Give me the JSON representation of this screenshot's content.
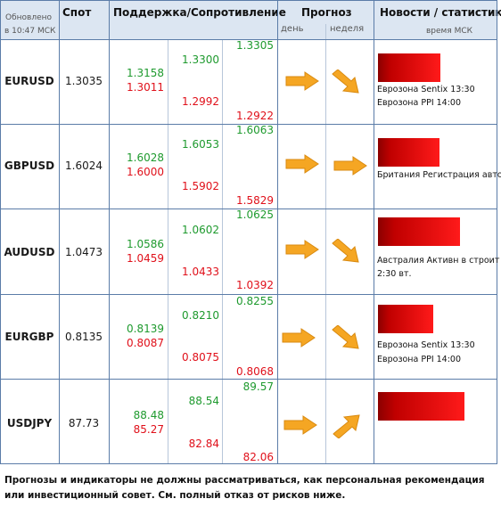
{
  "header": {
    "updated_label": "Обновлено",
    "updated_time": "в 10:47 МСК",
    "spot": "Спот",
    "support_resistance": "Поддержка/Сопротивление",
    "forecast": "Прогноз",
    "forecast_day": "день",
    "forecast_week": "неделя",
    "news": "Новости / статистика",
    "news_time": "время МСК"
  },
  "rows": [
    {
      "pair": "EURUSD",
      "spot": "1.3035",
      "s1": "1.3158",
      "r1": "1.3011",
      "s2": "1.3300",
      "r2": "1.2992",
      "s3": "1.3305",
      "r3": "1.2922",
      "day_arrow": "right-arrow-icon",
      "week_arrow": "down-right-arrow-icon",
      "bar_strength": 0.7,
      "news": [
        "Еврозона Sentix 13:30",
        "Еврозона PPI 14:00"
      ]
    },
    {
      "pair": "GBPUSD",
      "spot": "1.6024",
      "s1": "1.6028",
      "r1": "1.6000",
      "s2": "1.6053",
      "r2": "1.5902",
      "s3": "1.6063",
      "r3": "1.5829",
      "day_arrow": "right-arrow-icon",
      "week_arrow": "right-arrow-icon",
      "bar_strength": 0.68,
      "news": [
        "Британия Регистрация авто"
      ]
    },
    {
      "pair": "AUDUSD",
      "spot": "1.0473",
      "s1": "1.0586",
      "r1": "1.0459",
      "s2": "1.0602",
      "r2": "1.0433",
      "s3": "1.0625",
      "r3": "1.0392",
      "day_arrow": "right-arrow-icon",
      "week_arrow": "down-right-arrow-icon",
      "bar_strength": 0.92,
      "news": [
        "Австралия Активн в строит",
        "2:30 вт."
      ]
    },
    {
      "pair": "EURGBP",
      "spot": "0.8135",
      "s1": "0.8139",
      "r1": "0.8087",
      "s2": "0.8210",
      "r2": "0.8075",
      "s3": "0.8255",
      "r3": "0.8068",
      "day_arrow": "right-arrow-icon",
      "week_arrow": "down-right-arrow-icon",
      "bar_strength": 0.62,
      "news": [
        "Еврозона Sentix 13:30",
        "Еврозона PPI 14:00"
      ]
    },
    {
      "pair": "USDJPY",
      "spot": "87.73",
      "s1": "88.48",
      "r1": "85.27",
      "s2": "88.54",
      "r2": "82.84",
      "s3": "89.57",
      "r3": "82.06",
      "day_arrow": "right-arrow-icon",
      "week_arrow": "up-right-arrow-icon",
      "bar_strength": 0.97,
      "news": []
    }
  ],
  "colors": {
    "support": "#1e9a2e",
    "resistance": "#e0101a",
    "arrow_fill": "#f5a623",
    "header_bg": "#dce6f2",
    "grid": "#5b7ca8"
  },
  "disclaimer": "Прогнозы и индикаторы не должны рассматриваться, как персональная рекомендация или инвестиционный совет. См. полный отказ от рисков ниже."
}
